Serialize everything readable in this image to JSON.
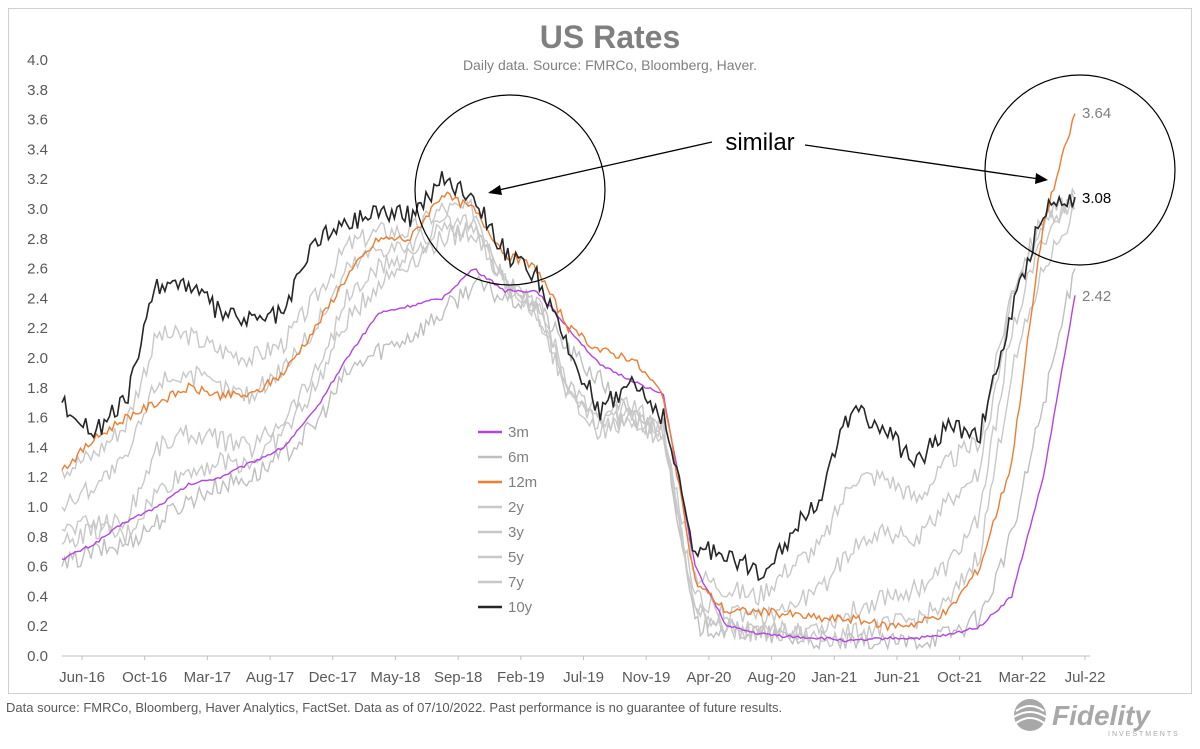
{
  "chart_data": {
    "type": "line",
    "title": "US Rates",
    "subtitle": "Daily data.  Source: FMRCo, Bloomberg, Haver.",
    "xlabel": "",
    "ylabel": "",
    "ylim": [
      0,
      4.0
    ],
    "y_ticks": [
      "0.0",
      "0.2",
      "0.4",
      "0.6",
      "0.8",
      "1.0",
      "1.2",
      "1.4",
      "1.6",
      "1.8",
      "2.0",
      "2.2",
      "2.4",
      "2.6",
      "2.8",
      "3.0",
      "3.2",
      "3.4",
      "3.6",
      "3.8",
      "4.0"
    ],
    "x_ticks": [
      "Jun-16",
      "Oct-16",
      "Mar-17",
      "Aug-17",
      "Dec-17",
      "May-18",
      "Sep-18",
      "Feb-19",
      "Jul-19",
      "Nov-19",
      "Apr-20",
      "Aug-20",
      "Jan-21",
      "Jun-21",
      "Oct-21",
      "Mar-22",
      "Jul-22"
    ],
    "grid": false,
    "legend_position": "center",
    "x": [
      "Jun-16",
      "Aug-16",
      "Oct-16",
      "Dec-16",
      "Mar-17",
      "May-17",
      "Aug-17",
      "Oct-17",
      "Dec-17",
      "Mar-18",
      "May-18",
      "Jul-18",
      "Sep-18",
      "Nov-18",
      "Feb-19",
      "Apr-19",
      "Jul-19",
      "Sep-19",
      "Nov-19",
      "Jan-20",
      "Apr-20",
      "Jun-20",
      "Aug-20",
      "Oct-20",
      "Jan-21",
      "Mar-21",
      "Jun-21",
      "Aug-21",
      "Oct-21",
      "Dec-21",
      "Mar-22",
      "May-22",
      "Jul-22"
    ],
    "series": [
      {
        "name": "3m",
        "color": "#b245e0",
        "values": [
          0.65,
          0.75,
          0.9,
          1.0,
          1.15,
          1.2,
          1.3,
          1.4,
          1.65,
          2.0,
          2.3,
          2.35,
          2.4,
          2.6,
          2.45,
          2.45,
          2.2,
          1.95,
          1.85,
          1.75,
          0.6,
          0.2,
          0.15,
          0.13,
          0.12,
          0.1,
          0.12,
          0.12,
          0.14,
          0.2,
          0.4,
          1.2,
          2.42
        ]
      },
      {
        "name": "6m",
        "color": "#bfbfbf",
        "values": [
          0.6,
          0.7,
          0.75,
          0.9,
          1.05,
          1.15,
          1.2,
          1.35,
          1.55,
          1.9,
          2.05,
          2.15,
          2.3,
          2.5,
          2.4,
          2.35,
          2.05,
          1.85,
          1.6,
          1.55,
          0.2,
          0.18,
          0.15,
          0.12,
          0.1,
          0.08,
          0.08,
          0.1,
          0.15,
          0.25,
          0.8,
          1.7,
          2.6
        ]
      },
      {
        "name": "12m",
        "color": "#ed7d31",
        "values": [
          1.25,
          1.45,
          1.6,
          1.7,
          1.8,
          1.75,
          1.75,
          1.9,
          2.2,
          2.55,
          2.8,
          2.8,
          3.1,
          3.0,
          2.7,
          2.6,
          2.2,
          2.05,
          2.0,
          1.75,
          0.5,
          0.3,
          0.3,
          0.28,
          0.25,
          0.25,
          0.2,
          0.22,
          0.3,
          0.6,
          1.3,
          2.9,
          3.64
        ]
      },
      {
        "name": "2y",
        "color": "#c8c8c8",
        "values": [
          0.75,
          0.85,
          0.8,
          1.1,
          1.25,
          1.3,
          1.3,
          1.5,
          1.8,
          2.25,
          2.5,
          2.65,
          2.8,
          2.85,
          2.5,
          2.35,
          1.8,
          1.6,
          1.6,
          1.5,
          0.3,
          0.2,
          0.15,
          0.15,
          0.12,
          0.15,
          0.2,
          0.25,
          0.35,
          0.7,
          1.9,
          2.6,
          3.0
        ]
      },
      {
        "name": "3y",
        "color": "#c8c8c8",
        "values": [
          0.85,
          0.9,
          0.9,
          1.4,
          1.5,
          1.45,
          1.4,
          1.6,
          1.9,
          2.4,
          2.6,
          2.7,
          2.85,
          2.85,
          2.5,
          2.3,
          1.75,
          1.55,
          1.6,
          1.5,
          0.3,
          0.2,
          0.15,
          0.18,
          0.2,
          0.3,
          0.4,
          0.45,
          0.6,
          0.95,
          2.2,
          2.8,
          3.1
        ]
      },
      {
        "name": "5y",
        "color": "#c8c8c8",
        "values": [
          1.0,
          1.15,
          1.3,
          1.85,
          1.9,
          1.8,
          1.75,
          1.95,
          2.2,
          2.6,
          2.75,
          2.75,
          2.9,
          2.9,
          2.5,
          2.3,
          1.75,
          1.5,
          1.6,
          1.45,
          0.4,
          0.3,
          0.25,
          0.35,
          0.45,
          0.75,
          0.85,
          0.75,
          1.05,
          1.25,
          2.4,
          2.9,
          3.05
        ]
      },
      {
        "name": "7y",
        "color": "#c8c8c8",
        "values": [
          1.25,
          1.35,
          1.55,
          2.15,
          2.15,
          2.05,
          2.0,
          2.1,
          2.4,
          2.75,
          2.85,
          2.85,
          3.0,
          3.0,
          2.55,
          2.4,
          1.85,
          1.55,
          1.7,
          1.5,
          0.55,
          0.45,
          0.4,
          0.6,
          0.75,
          1.2,
          1.2,
          1.05,
          1.3,
          1.45,
          2.45,
          2.95,
          3.07
        ]
      },
      {
        "name": "10y",
        "color": "#262626",
        "values": [
          1.7,
          1.5,
          1.7,
          2.5,
          2.5,
          2.3,
          2.25,
          2.3,
          2.8,
          2.9,
          3.0,
          2.95,
          3.2,
          3.1,
          2.7,
          2.55,
          2.05,
          1.65,
          1.85,
          1.6,
          0.7,
          0.7,
          0.55,
          0.8,
          1.1,
          1.7,
          1.5,
          1.3,
          1.55,
          1.5,
          2.3,
          3.0,
          3.08
        ]
      }
    ],
    "annotations": {
      "callout": "similar",
      "end_labels": [
        {
          "series": "12m",
          "text": "3.64"
        },
        {
          "series": "10y",
          "text": "3.08"
        },
        {
          "series": "3m",
          "text": "2.42"
        }
      ]
    }
  },
  "footer": {
    "note": "Data source: FMRCo, Bloomberg, Haver Analytics, FactSet. Data as of 07/10/2022. Past performance is no guarantee of future results."
  },
  "brand": {
    "logo_text": "Fidelity",
    "logo_subtext": "INVESTMENTS"
  }
}
